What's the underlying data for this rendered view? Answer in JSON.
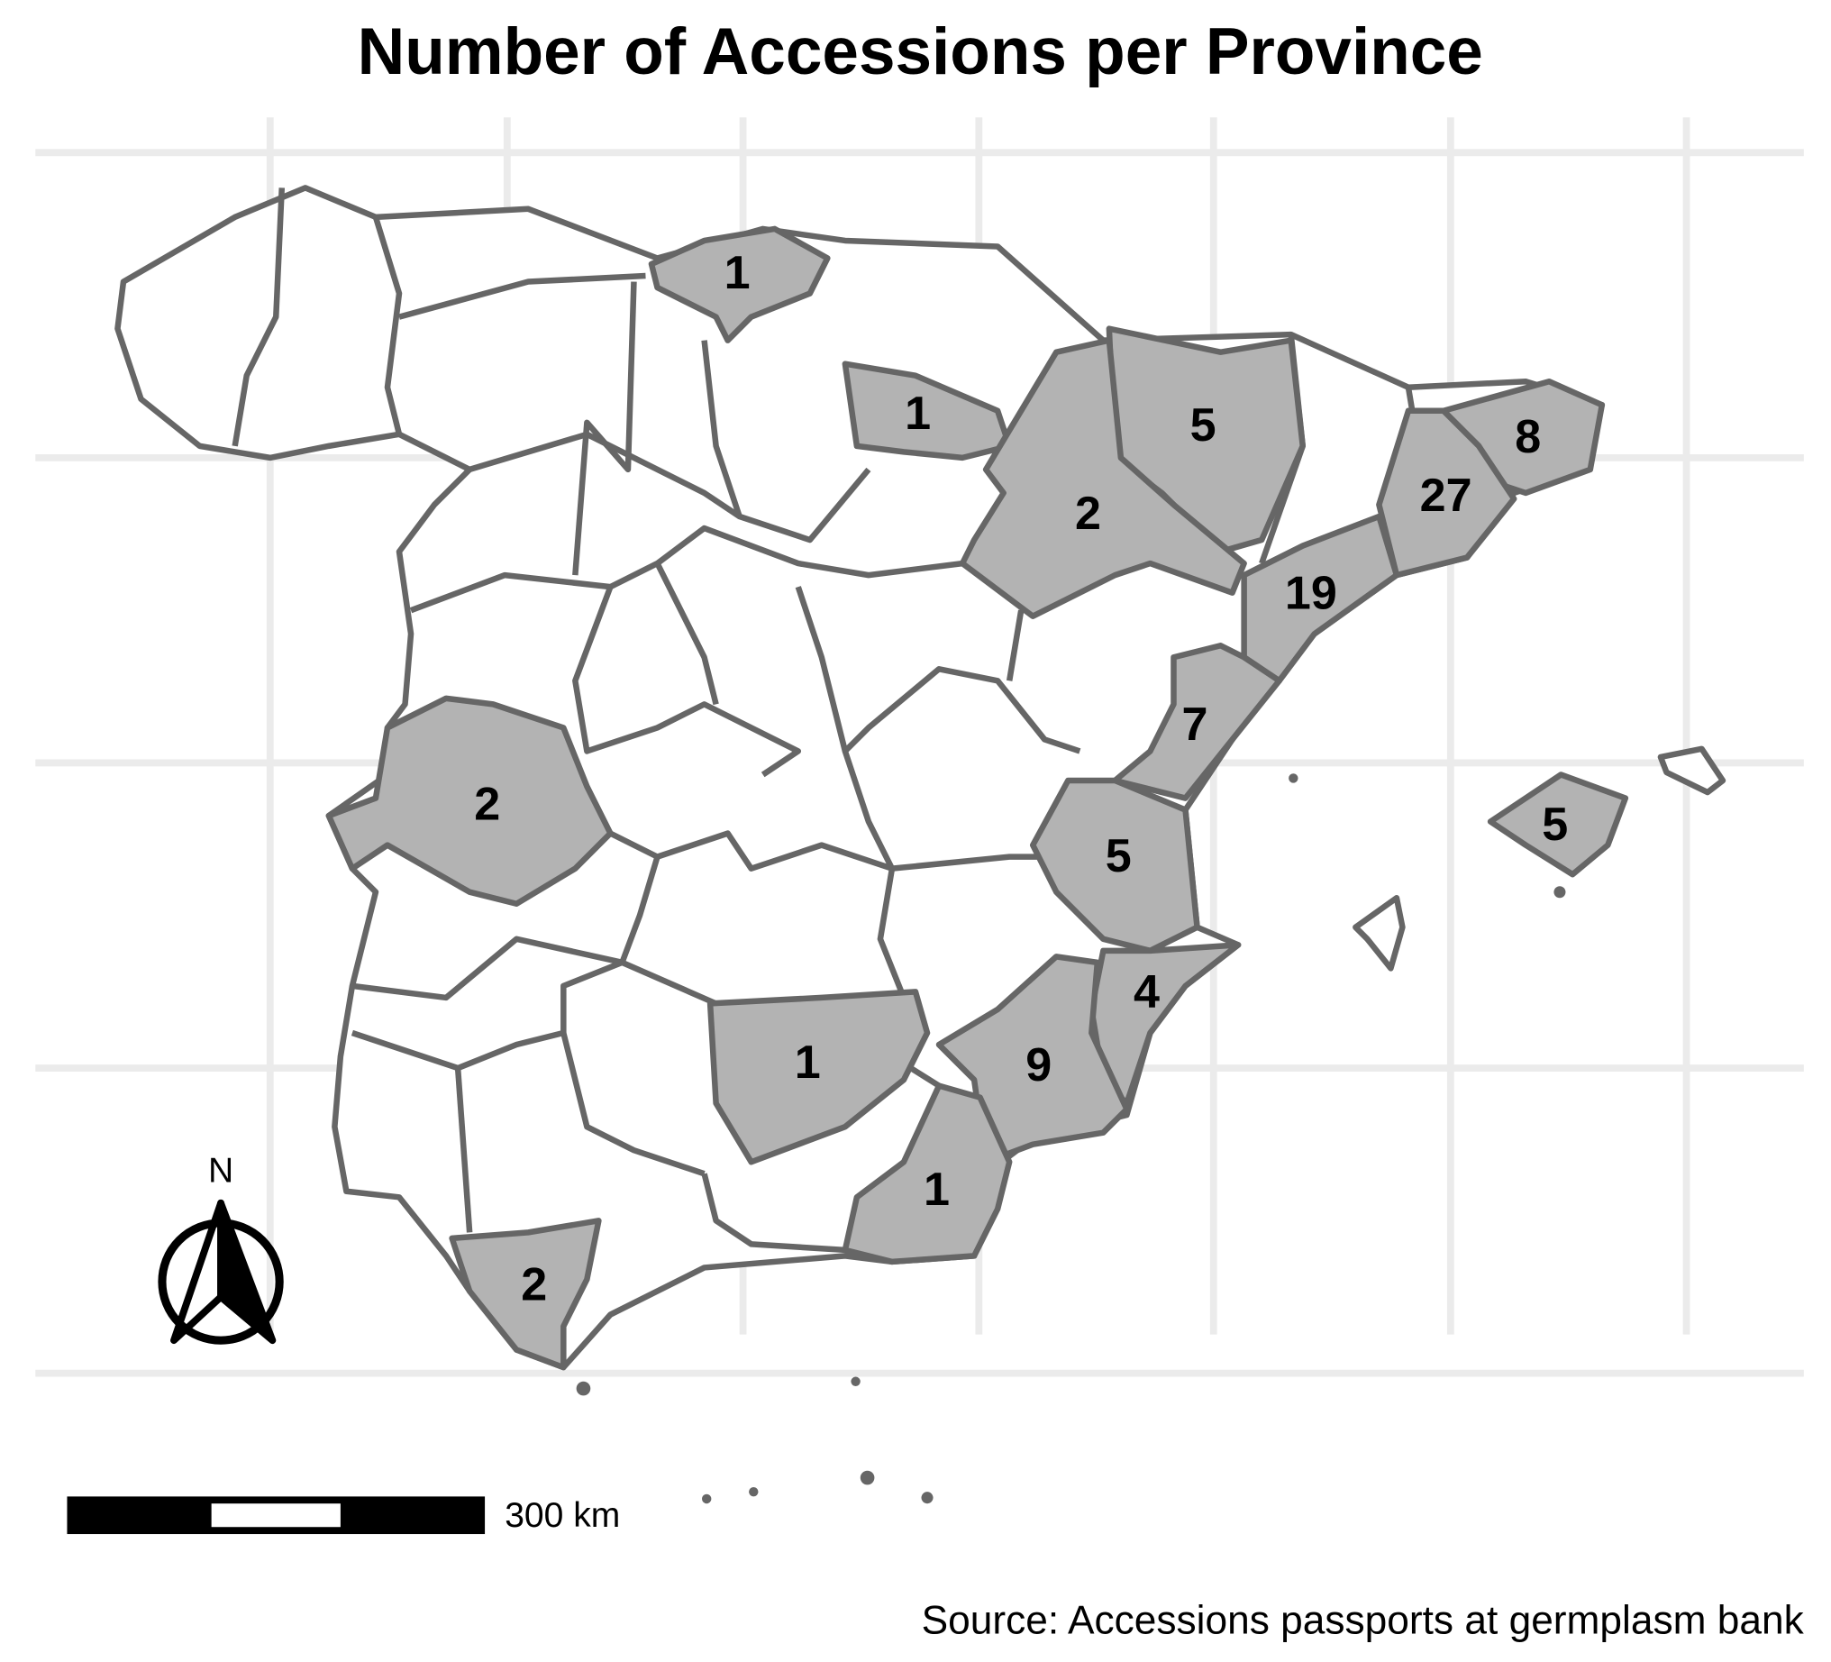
{
  "title": "Number of Accessions per Province",
  "regions": [
    {
      "count": 1
    },
    {
      "count": 1
    },
    {
      "count": 5
    },
    {
      "count": 2
    },
    {
      "count": 8
    },
    {
      "count": 27
    },
    {
      "count": 19
    },
    {
      "count": 7
    },
    {
      "count": 5
    },
    {
      "count": 4
    },
    {
      "count": 9
    },
    {
      "count": 1
    },
    {
      "count": 1
    },
    {
      "count": 2
    },
    {
      "count": 2
    },
    {
      "count": 5
    }
  ],
  "north_label": "N",
  "scale_label": "300 km",
  "source": "Source: Accessions passports at germplasm bank"
}
